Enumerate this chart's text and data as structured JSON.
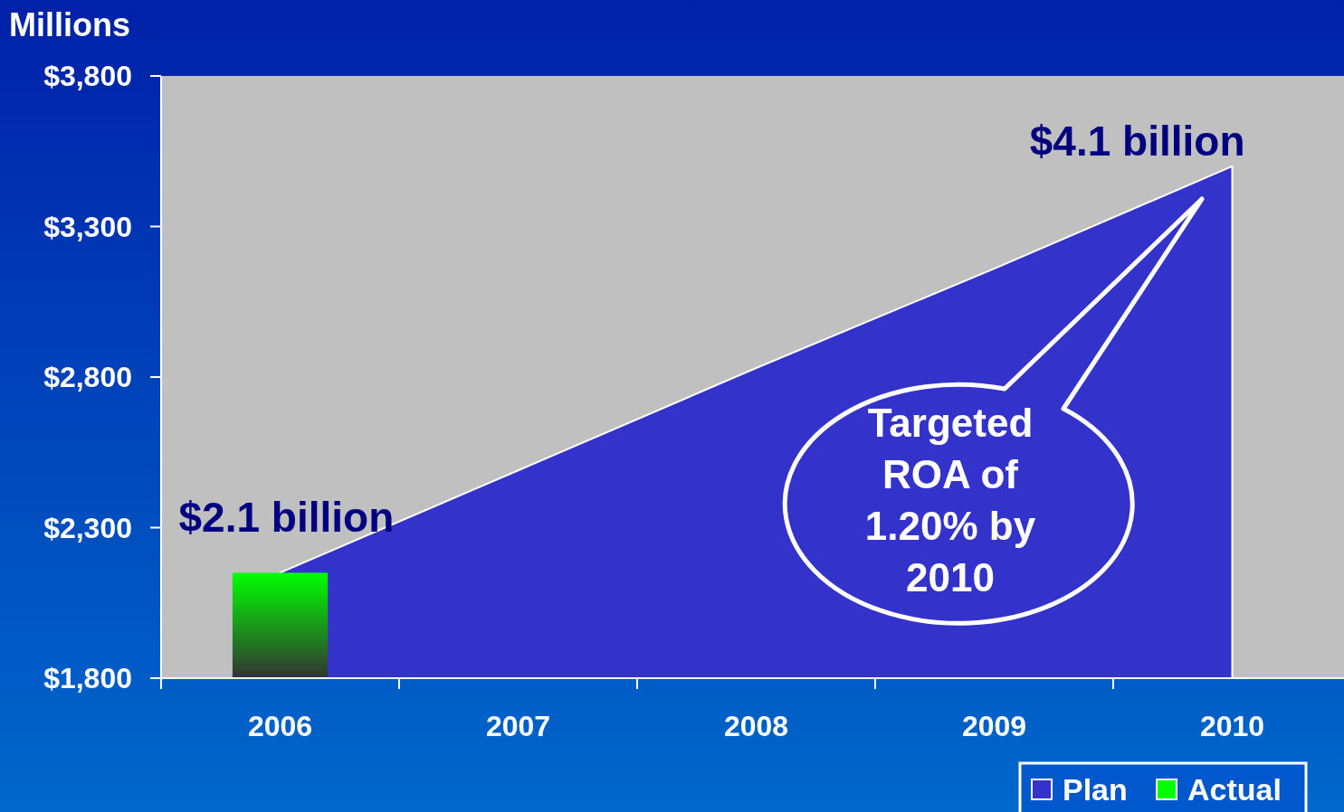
{
  "chart_data": {
    "type": "area",
    "ylabel": "Millions",
    "categories": [
      "2006",
      "2007",
      "2008",
      "2009",
      "2010"
    ],
    "series": [
      {
        "name": "Plan",
        "color": "#3333cc",
        "values": [
          2150,
          2490,
          2830,
          3160,
          3500
        ]
      },
      {
        "name": "Actual",
        "type": "bar",
        "color": "#00ff00",
        "values": [
          2150,
          null,
          null,
          null,
          null
        ]
      }
    ],
    "ylim": [
      1800,
      3800
    ],
    "yticks": [
      {
        "value": 1800,
        "label": "$1,800"
      },
      {
        "value": 2300,
        "label": "$2,300"
      },
      {
        "value": 2800,
        "label": "$2,800"
      },
      {
        "value": 3300,
        "label": "$3,300"
      },
      {
        "value": 3800,
        "label": "$3,800"
      }
    ],
    "annotations": [
      {
        "text": "$2.1 billion",
        "x": "2006",
        "y": 2150
      },
      {
        "text": "$4.1 billion",
        "x": "2010",
        "y": 3500
      },
      "Targeted ROA of 1.20% by 2010"
    ],
    "legend": "bottom right",
    "grid": false
  }
}
